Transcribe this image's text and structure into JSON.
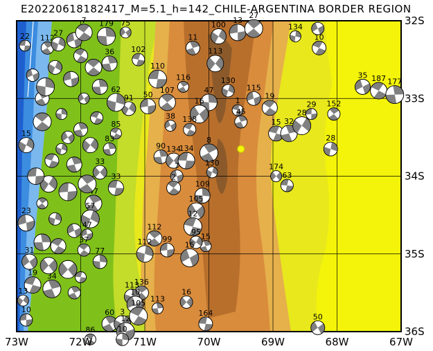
{
  "title": "E20220618182417_M=5.1_h=142_CHILE-ARGENTINA BORDER REGION",
  "lon_labels": [
    "73W",
    "72W",
    "71W",
    "70W",
    "69W",
    "68W",
    "67W"
  ],
  "lat_labels": [
    "32S",
    "33S",
    "34S",
    "35S",
    "36S"
  ],
  "colors": {
    "ocean_deep": "#1e5fd0",
    "ocean_mid": "#3c8ce0",
    "ocean_shallow": "#7ab8ee",
    "lowland": "#7fc11a",
    "plain": "#c4dc2a",
    "yellow": "#e8e81c",
    "bright_yellow": "#f4f40a",
    "tan": "#e6b04a",
    "orange": "#d98c3c",
    "brown": "#b86f2c",
    "dark_brown": "#8c5a2a",
    "frame": "#000000",
    "epicenter": "#f4f40a"
  },
  "events": [
    {
      "lon": -72.87,
      "lat": -32.32,
      "label": "22"
    },
    {
      "lon": -72.52,
      "lat": -32.35,
      "label": "112"
    },
    {
      "lon": -72.35,
      "lat": -32.3,
      "label": "27"
    },
    {
      "lon": -72.1,
      "lat": -32.25,
      "label": ""
    },
    {
      "lon": -71.95,
      "lat": -32.15,
      "label": "7"
    },
    {
      "lon": -71.6,
      "lat": -32.2,
      "label": "179"
    },
    {
      "lon": -71.3,
      "lat": -32.15,
      "label": "75"
    },
    {
      "lon": -71.1,
      "lat": -32.5,
      "label": "102"
    },
    {
      "lon": -70.25,
      "lat": -32.35,
      "label": "11"
    },
    {
      "lon": -69.85,
      "lat": -32.2,
      "label": "100"
    },
    {
      "lon": -69.55,
      "lat": -32.15,
      "label": "13"
    },
    {
      "lon": -69.3,
      "lat": -32.1,
      "label": "27"
    },
    {
      "lon": -68.65,
      "lat": -32.2,
      "label": "134"
    },
    {
      "lon": -68.3,
      "lat": -32.1,
      "label": ""
    },
    {
      "lon": -68.28,
      "lat": -32.35,
      "label": "10"
    },
    {
      "lon": -71.55,
      "lat": -32.55,
      "label": "36"
    },
    {
      "lon": -69.9,
      "lat": -32.55,
      "label": "113"
    },
    {
      "lon": -70.8,
      "lat": -32.75,
      "label": "110"
    },
    {
      "lon": -70.4,
      "lat": -32.85,
      "label": "116"
    },
    {
      "lon": -69.7,
      "lat": -32.9,
      "label": "130"
    },
    {
      "lon": -69.3,
      "lat": -33.0,
      "label": "115"
    },
    {
      "lon": -69.05,
      "lat": -33.12,
      "label": "19"
    },
    {
      "lon": -70.0,
      "lat": -33.05,
      "label": "47"
    },
    {
      "lon": -70.15,
      "lat": -33.2,
      "label": "16"
    },
    {
      "lon": -69.55,
      "lat": -33.15,
      "label": "1"
    },
    {
      "lon": -69.5,
      "lat": -33.3,
      "label": "45"
    },
    {
      "lon": -71.25,
      "lat": -33.13,
      "label": "91"
    },
    {
      "lon": -70.95,
      "lat": -33.1,
      "label": "50"
    },
    {
      "lon": -70.65,
      "lat": -33.05,
      "label": "107"
    },
    {
      "lon": -71.45,
      "lat": -33.05,
      "label": "62"
    },
    {
      "lon": -70.6,
      "lat": -33.35,
      "label": "38"
    },
    {
      "lon": -70.3,
      "lat": -33.4,
      "label": "138"
    },
    {
      "lon": -70.75,
      "lat": -33.75,
      "label": "90"
    },
    {
      "lon": -70.55,
      "lat": -33.8,
      "label": "134"
    },
    {
      "lon": -70.35,
      "lat": -33.8,
      "label": "134"
    },
    {
      "lon": -70.0,
      "lat": -33.7,
      "label": "8"
    },
    {
      "lon": -69.95,
      "lat": -33.95,
      "label": "130"
    },
    {
      "lon": -70.5,
      "lat": -34.0,
      "label": "7"
    },
    {
      "lon": -70.55,
      "lat": -34.15,
      "label": "2"
    },
    {
      "lon": -70.1,
      "lat": -34.25,
      "label": "109"
    },
    {
      "lon": -70.2,
      "lat": -34.45,
      "label": "105"
    },
    {
      "lon": -70.25,
      "lat": -34.65,
      "label": "12"
    },
    {
      "lon": -70.05,
      "lat": -34.9,
      "label": "15"
    },
    {
      "lon": -70.2,
      "lat": -34.85,
      "label": "95"
    },
    {
      "lon": -70.65,
      "lat": -34.95,
      "label": "99"
    },
    {
      "lon": -70.85,
      "lat": -34.8,
      "label": "112"
    },
    {
      "lon": -71.0,
      "lat": -35.0,
      "label": "112"
    },
    {
      "lon": -70.3,
      "lat": -35.05,
      "label": "15"
    },
    {
      "lon": -71.45,
      "lat": -33.45,
      "label": "85"
    },
    {
      "lon": -71.55,
      "lat": -33.65,
      "label": "83"
    },
    {
      "lon": -71.7,
      "lat": -33.95,
      "label": "33"
    },
    {
      "lon": -71.45,
      "lat": -34.15,
      "label": "33"
    },
    {
      "lon": -71.8,
      "lat": -34.35,
      "label": "47"
    },
    {
      "lon": -71.85,
      "lat": -34.55,
      "label": "57"
    },
    {
      "lon": -71.9,
      "lat": -34.75,
      "label": "47"
    },
    {
      "lon": -71.95,
      "lat": -34.95,
      "label": "37"
    },
    {
      "lon": -71.7,
      "lat": -35.1,
      "label": "77"
    },
    {
      "lon": -72.8,
      "lat": -35.1,
      "label": "31"
    },
    {
      "lon": -72.75,
      "lat": -35.4,
      "label": "19"
    },
    {
      "lon": -72.45,
      "lat": -35.45,
      "label": "34"
    },
    {
      "lon": -72.9,
      "lat": -35.6,
      "label": "13"
    },
    {
      "lon": -72.85,
      "lat": -35.85,
      "label": "10"
    },
    {
      "lon": -71.05,
      "lat": -35.5,
      "label": "136"
    },
    {
      "lon": -71.2,
      "lat": -35.55,
      "label": "113"
    },
    {
      "lon": -71.15,
      "lat": -35.65,
      "label": "10"
    },
    {
      "lon": -71.1,
      "lat": -35.8,
      "label": "105"
    },
    {
      "lon": -70.8,
      "lat": -35.7,
      "label": "113"
    },
    {
      "lon": -70.35,
      "lat": -35.62,
      "label": "16"
    },
    {
      "lon": -70.05,
      "lat": -35.9,
      "label": "164"
    },
    {
      "lon": -71.55,
      "lat": -35.9,
      "label": "60"
    },
    {
      "lon": -71.35,
      "lat": -35.9,
      "label": "3"
    },
    {
      "lon": -71.3,
      "lat": -36.0,
      "label": "12"
    },
    {
      "lon": -71.85,
      "lat": -36.1,
      "label": "86"
    },
    {
      "lon": -71.35,
      "lat": -36.1,
      "label": "10"
    },
    {
      "lon": -68.3,
      "lat": -35.95,
      "label": "50"
    },
    {
      "lon": -68.95,
      "lat": -33.45,
      "label": "15"
    },
    {
      "lon": -68.75,
      "lat": -33.45,
      "label": "32"
    },
    {
      "lon": -68.55,
      "lat": -33.35,
      "label": "28"
    },
    {
      "lon": -68.4,
      "lat": -33.2,
      "label": "29"
    },
    {
      "lon": -68.05,
      "lat": -33.2,
      "label": "152"
    },
    {
      "lon": -68.1,
      "lat": -33.65,
      "label": "28"
    },
    {
      "lon": -67.6,
      "lat": -32.85,
      "label": "35"
    },
    {
      "lon": -67.35,
      "lat": -32.9,
      "label": "187"
    },
    {
      "lon": -67.1,
      "lat": -32.95,
      "label": "177"
    },
    {
      "lon": -68.95,
      "lat": -34.0,
      "label": "174"
    },
    {
      "lon": -68.78,
      "lat": -34.12,
      "label": "63"
    },
    {
      "lon": -72.6,
      "lat": -33.0,
      "label": "15"
    },
    {
      "lon": -72.85,
      "lat": -33.6,
      "label": "15"
    },
    {
      "lon": -72.85,
      "lat": -34.6,
      "label": "23"
    },
    {
      "lon": -72.6,
      "lat": -33.3,
      "label": ""
    },
    {
      "lon": -72.3,
      "lat": -33.2,
      "label": ""
    },
    {
      "lon": -72.2,
      "lat": -33.5,
      "label": ""
    },
    {
      "lon": -72.45,
      "lat": -33.8,
      "label": ""
    },
    {
      "lon": -72.1,
      "lat": -33.85,
      "label": ""
    },
    {
      "lon": -72.5,
      "lat": -34.1,
      "label": ""
    },
    {
      "lon": -72.2,
      "lat": -34.2,
      "label": ""
    },
    {
      "lon": -72.6,
      "lat": -34.35,
      "label": ""
    },
    {
      "lon": -72.4,
      "lat": -34.55,
      "label": ""
    },
    {
      "lon": -72.1,
      "lat": -34.7,
      "label": ""
    },
    {
      "lon": -72.35,
      "lat": -34.9,
      "label": ""
    },
    {
      "lon": -72.6,
      "lat": -34.85,
      "label": ""
    },
    {
      "lon": -72.2,
      "lat": -35.2,
      "label": ""
    },
    {
      "lon": -72.0,
      "lat": -35.3,
      "label": ""
    },
    {
      "lon": -72.1,
      "lat": -35.5,
      "label": ""
    },
    {
      "lon": -72.4,
      "lat": -32.6,
      "label": ""
    },
    {
      "lon": -72.15,
      "lat": -32.75,
      "label": ""
    },
    {
      "lon": -71.8,
      "lat": -32.6,
      "label": ""
    },
    {
      "lon": -72.55,
      "lat": -32.85,
      "label": ""
    },
    {
      "lon": -71.95,
      "lat": -33.0,
      "label": ""
    },
    {
      "lon": -71.75,
      "lat": -33.25,
      "label": ""
    },
    {
      "lon": -72.0,
      "lat": -33.4,
      "label": ""
    },
    {
      "lon": -71.85,
      "lat": -33.6,
      "label": ""
    },
    {
      "lon": -72.7,
      "lat": -34.0,
      "label": ""
    },
    {
      "lon": -71.9,
      "lat": -34.1,
      "label": ""
    },
    {
      "lon": -72.3,
      "lat": -33.65,
      "label": ""
    },
    {
      "lon": -72.75,
      "lat": -32.7,
      "label": ""
    },
    {
      "lon": -72.0,
      "lat": -32.45,
      "label": ""
    },
    {
      "lon": -71.7,
      "lat": -32.85,
      "label": ""
    },
    {
      "lon": -72.5,
      "lat": -35.15,
      "label": ""
    }
  ],
  "epicenter": {
    "lon": -69.5,
    "lat": -33.65
  }
}
